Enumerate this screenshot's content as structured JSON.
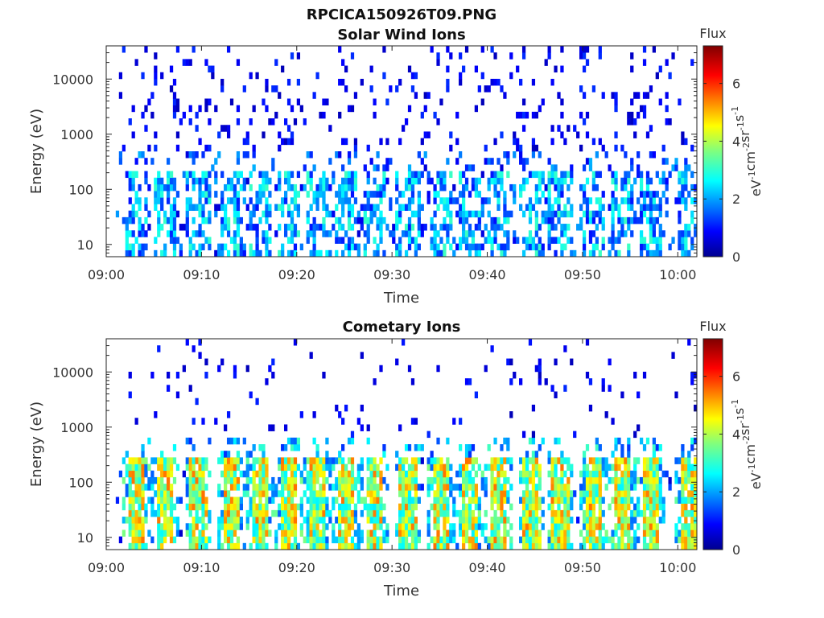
{
  "figure_title": "RPCICA150926T09.PNG",
  "colorbar": {
    "title": "Flux",
    "label_html": [
      "eV",
      "-1",
      "cm",
      "-2",
      "sr",
      "-1",
      "s",
      "-1"
    ],
    "range": [
      0,
      7.3
    ],
    "ticks": [
      "0",
      "2",
      "4",
      "6"
    ],
    "colormap": "jet"
  },
  "chart_data": [
    {
      "type": "heatmap",
      "title": "Solar Wind Ions",
      "xlabel": "Time",
      "ylabel": "Energy (eV)",
      "x_range": [
        "09:00",
        "10:02"
      ],
      "x_ticks": [
        "09:00",
        "09:10",
        "09:20",
        "09:30",
        "09:40",
        "09:50",
        "10:00"
      ],
      "y_scale": "log",
      "y_range": [
        6,
        40000
      ],
      "y_ticks": [
        "10",
        "100",
        "1000",
        "10000"
      ],
      "description_values": {
        "noise_above_1000eV": "sparse dark-blue pixels, flux ~0.5-1",
        "bursts_20_300eV": "blue/cyan bursts flux ~1-3 at ~3 min period",
        "burst_centers_min": [
          3,
          6,
          9.5,
          13,
          16,
          19,
          22,
          25,
          28,
          31.5,
          35,
          38,
          41,
          44.5,
          47.5,
          51,
          54,
          57,
          61
        ]
      }
    },
    {
      "type": "heatmap",
      "title": "Cometary Ions",
      "xlabel": "Time",
      "ylabel": "Energy (eV)",
      "x_range": [
        "09:00",
        "10:02"
      ],
      "x_ticks": [
        "09:00",
        "09:10",
        "09:20",
        "09:30",
        "09:40",
        "09:50",
        "10:00"
      ],
      "y_scale": "log",
      "y_range": [
        6,
        40000
      ],
      "y_ticks": [
        "10",
        "100",
        "1000",
        "10000"
      ],
      "description_values": {
        "noise_above_1000eV": "very sparse dark-blue pixels, flux ~0.5-1",
        "bursts_10_300eV": "green/yellow/orange bursts flux ~3-5.5 at ~3 min period",
        "burst_centers_min": [
          3,
          6,
          9.5,
          13,
          16,
          19,
          22,
          25,
          28,
          31.5,
          35,
          38,
          41,
          44.5,
          47.5,
          51,
          54,
          57,
          61
        ]
      }
    }
  ]
}
